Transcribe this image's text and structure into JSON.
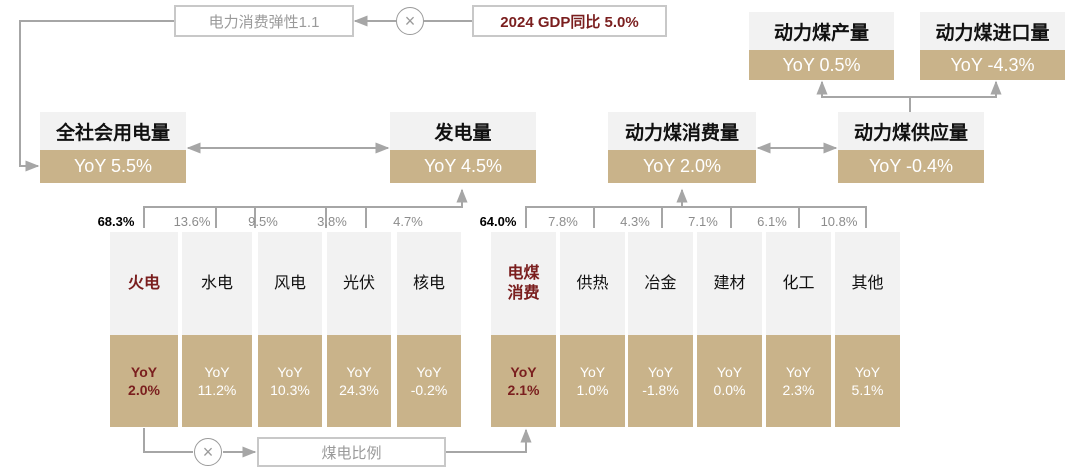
{
  "top": {
    "elasticity_label": "电力消费弹性1.1",
    "gdp_label": "2024 GDP同比 5.0%",
    "coal_ratio_label": "煤电比例",
    "times_symbol": "×"
  },
  "nodes": {
    "consumption": {
      "title": "全社会用电量",
      "value": "YoY 5.5%"
    },
    "generation": {
      "title": "发电量",
      "value": "YoY 4.5%"
    },
    "coal_consumption": {
      "title": "动力煤消费量",
      "value": "YoY 2.0%"
    },
    "coal_supply": {
      "title": "动力煤供应量",
      "value": "YoY -0.4%"
    },
    "coal_production": {
      "title": "动力煤产量",
      "value": "YoY 0.5%"
    },
    "coal_import": {
      "title": "动力煤进口量",
      "value": "YoY -4.3%"
    }
  },
  "generation_mix": [
    {
      "share": "68.3%",
      "name": "火电",
      "yoy_label": "YoY",
      "yoy": "2.0%",
      "highlight": true
    },
    {
      "share": "13.6%",
      "name": "水电",
      "yoy_label": "YoY",
      "yoy": "11.2%",
      "highlight": false
    },
    {
      "share": "9.5%",
      "name": "风电",
      "yoy_label": "YoY",
      "yoy": "10.3%",
      "highlight": false
    },
    {
      "share": "3.8%",
      "name": "光伏",
      "yoy_label": "YoY",
      "yoy": "24.3%",
      "highlight": false
    },
    {
      "share": "4.7%",
      "name": "核电",
      "yoy_label": "YoY",
      "yoy": "-0.2%",
      "highlight": false
    }
  ],
  "coal_demand_mix": [
    {
      "share": "64.0%",
      "name": "电煤\n消费",
      "yoy_label": "YoY",
      "yoy": "2.1%",
      "highlight": true
    },
    {
      "share": "7.8%",
      "name": "供热",
      "yoy_label": "YoY",
      "yoy": "1.0%",
      "highlight": false
    },
    {
      "share": "4.3%",
      "name": "冶金",
      "yoy_label": "YoY",
      "yoy": "-1.8%",
      "highlight": false
    },
    {
      "share": "7.1%",
      "name": "建材",
      "yoy_label": "YoY",
      "yoy": "0.0%",
      "highlight": false
    },
    {
      "share": "6.1%",
      "name": "化工",
      "yoy_label": "YoY",
      "yoy": "2.3%",
      "highlight": false
    },
    {
      "share": "10.8%",
      "name": "其他",
      "yoy_label": "YoY",
      "yoy": "5.1%",
      "highlight": false
    }
  ],
  "colors": {
    "accent_gold": "#c9b38a",
    "highlight_red": "#7a1e1e",
    "box_grey": "#f2f2f2",
    "line_grey": "#a6a6a6"
  }
}
